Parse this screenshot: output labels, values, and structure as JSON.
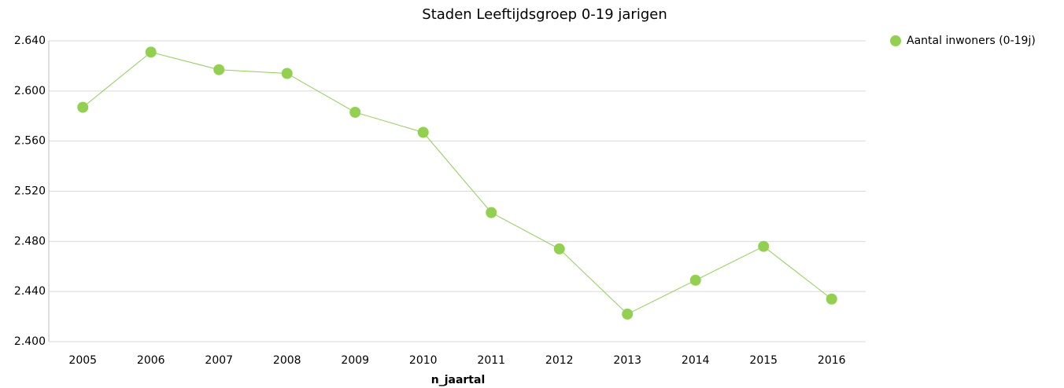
{
  "chart_data": {
    "type": "line",
    "title": "Staden  Leeftijdsgroep 0-19 jarigen",
    "x_label": "n_jaartal",
    "categories": [
      "2005",
      "2006",
      "2007",
      "2008",
      "2009",
      "2010",
      "2011",
      "2012",
      "2013",
      "2014",
      "2015",
      "2016"
    ],
    "series": [
      {
        "name": "Aantal inwoners (0-19j)",
        "color": "#92d050",
        "values": [
          2587,
          2631,
          2617,
          2614,
          2583,
          2567,
          2503,
          2474,
          2422,
          2449,
          2476,
          2434
        ]
      }
    ],
    "ylim": [
      2400,
      2640
    ],
    "yticks": [
      {
        "value": 2400,
        "label": "2.400"
      },
      {
        "value": 2440,
        "label": "2.440"
      },
      {
        "value": 2480,
        "label": "2.480"
      },
      {
        "value": 2520,
        "label": "2.520"
      },
      {
        "value": 2560,
        "label": "2.560"
      },
      {
        "value": 2600,
        "label": "2.600"
      },
      {
        "value": 2640,
        "label": "2.640"
      }
    ],
    "grid": true,
    "legend": "right"
  }
}
